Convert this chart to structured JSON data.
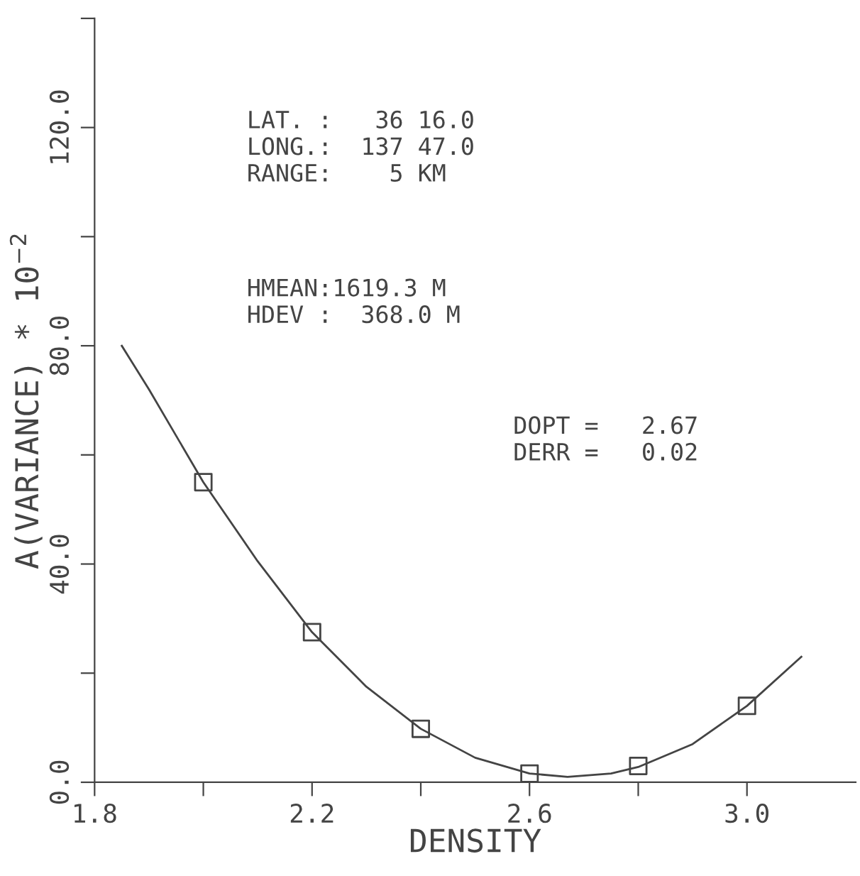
{
  "chart_data": {
    "type": "scatter",
    "xlabel": "DENSITY",
    "ylabel": "A(VARIANCE) * 10$^{−2}$",
    "xlim": [
      1.8,
      3.2
    ],
    "xticks": [
      1.8,
      {
        "value": 2.0,
        "label": null
      },
      2.2,
      {
        "value": 2.4,
        "label": null
      },
      2.6,
      {
        "value": 2.8,
        "label": null
      },
      {
        "value": 3,
        "label": "3.0"
      }
    ],
    "ylim": [
      0,
      140
    ],
    "yticks": [
      {
        "value": 0,
        "label": "0.0"
      },
      {
        "value": 20,
        "label": null
      },
      {
        "value": 40,
        "label": "40.0"
      },
      {
        "value": 60,
        "label": null
      },
      {
        "value": 80,
        "label": "80.0"
      },
      {
        "value": 100,
        "label": null
      },
      {
        "value": 120,
        "label": "120.0"
      },
      {
        "value": 140,
        "label": null
      }
    ],
    "grid": false,
    "series": [
      {
        "marker": "square",
        "color": "#444444",
        "x": [
          2.0,
          2.2,
          2.4,
          2.6,
          2.8,
          3.0
        ],
        "values": [
          55,
          27.5,
          9.8,
          1.6,
          3.0,
          14
        ]
      },
      {
        "type": "line",
        "marker": "none",
        "line_style": "solid",
        "color": "#444444",
        "x": [
          1.85,
          1.9,
          2.0,
          2.1,
          2.2,
          2.3,
          2.4,
          2.5,
          2.6,
          2.67,
          2.75,
          2.8,
          2.9,
          3.0,
          3.1
        ],
        "values": [
          80,
          72,
          55,
          40.5,
          27.5,
          17.5,
          9.8,
          4.5,
          1.6,
          1.0,
          1.6,
          2.8,
          7,
          14,
          23
        ]
      }
    ],
    "annotations": [
      "LAT. :   36 16.0\nLONG.:  137 47.0\nRANGE:    5 KM",
      "HMEAN:1619.3 M\nHDEV :  368.0 M",
      "DOPT =   2.67\nDERR =   0.02"
    ]
  }
}
